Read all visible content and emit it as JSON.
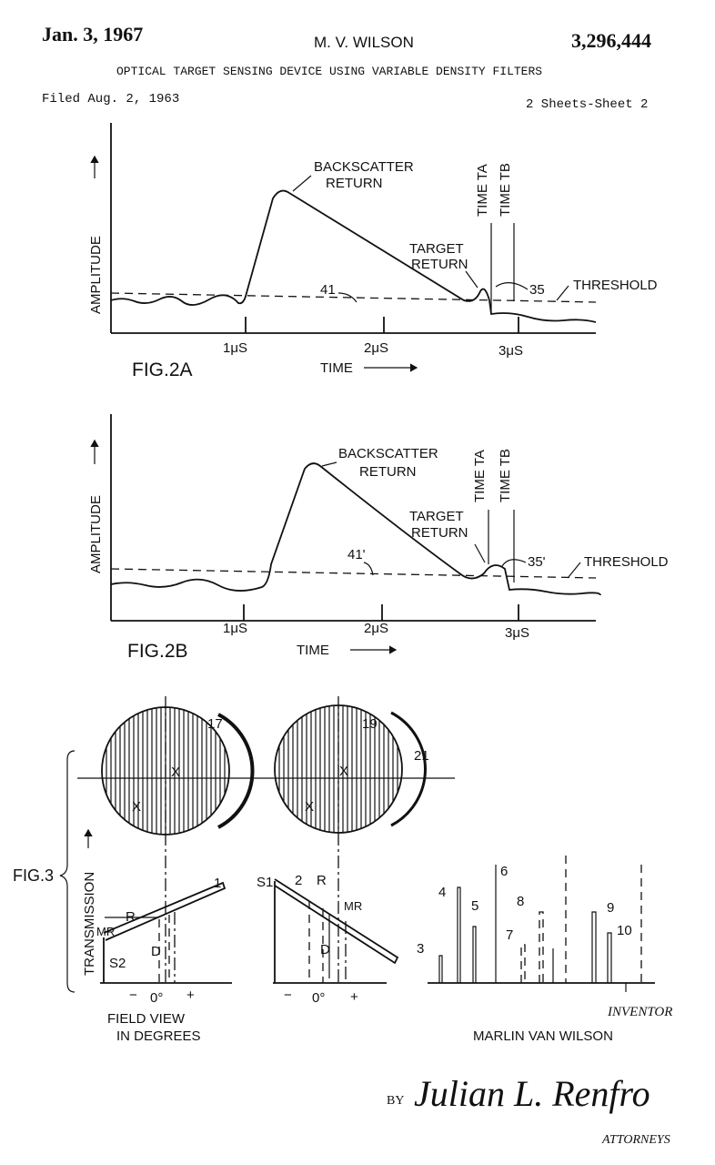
{
  "header": {
    "date": "Jan. 3, 1967",
    "inventor": "M. V. WILSON",
    "patent_number": "3,296,444",
    "title": "OPTICAL TARGET SENSING DEVICE USING VARIABLE DENSITY FILTERS",
    "filed": "Filed Aug. 2, 1963",
    "sheet": "2 Sheets-Sheet 2"
  },
  "fig2a": {
    "label": "FIG.2A",
    "y_axis": "AMPLITUDE",
    "x_axis": "TIME",
    "ticks": [
      "1μS",
      "2μS",
      "3μS"
    ],
    "backscatter": [
      "BACKSCATTER",
      "RETURN"
    ],
    "target": [
      "TARGET",
      "RETURN"
    ],
    "time_a": "TIME TA",
    "time_b": "TIME TB",
    "ref_threshold": "41",
    "ref_pulse": "35",
    "threshold": "THRESHOLD"
  },
  "fig2b": {
    "label": "FIG.2B",
    "y_axis": "AMPLITUDE",
    "x_axis": "TIME",
    "ticks": [
      "1μS",
      "2μS",
      "3μS"
    ],
    "backscatter": [
      "BACKSCATTER",
      "RETURN"
    ],
    "target": [
      "TARGET",
      "RETURN"
    ],
    "time_a": "TIME TA",
    "time_b": "TIME TB",
    "ref_threshold": "41'",
    "ref_pulse": "35'",
    "threshold": "THRESHOLD"
  },
  "fig3": {
    "label": "FIG.3",
    "y_axis": "TRANSMISSION",
    "refs": {
      "filter_left": "17",
      "filter_right": "19",
      "axis": "21"
    },
    "x_marks": [
      "X",
      "X",
      "X",
      "X"
    ],
    "graph_left": {
      "line": "1",
      "range": "R",
      "max_range": "MR",
      "distance": "D",
      "start": "S2",
      "minus": "−",
      "zero": "0°",
      "plus": "+"
    },
    "graph_mid": {
      "line": "2",
      "range": "R",
      "max_range": "MR",
      "distance": "D",
      "start": "S1",
      "minus": "−",
      "zero": "0°",
      "plus": "+"
    },
    "bars": [
      "3",
      "4",
      "5",
      "6",
      "7",
      "8",
      "9",
      "10"
    ],
    "x_axis": [
      "FIELD VIEW",
      "IN DEGREES"
    ]
  },
  "footer": {
    "inventor_label": "INVENTOR",
    "inventor_name": "MARLIN VAN WILSON",
    "by": "BY",
    "signature": "Julian L. Renfro",
    "attorneys": "ATTORNEYS"
  }
}
